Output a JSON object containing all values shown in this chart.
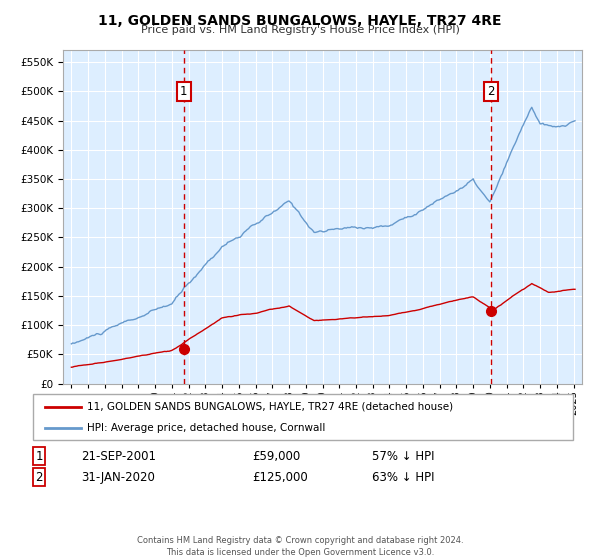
{
  "title": "11, GOLDEN SANDS BUNGALOWS, HAYLE, TR27 4RE",
  "subtitle": "Price paid vs. HM Land Registry's House Price Index (HPI)",
  "legend_line1": "11, GOLDEN SANDS BUNGALOWS, HAYLE, TR27 4RE (detached house)",
  "legend_line2": "HPI: Average price, detached house, Cornwall",
  "sale1_date": "21-SEP-2001",
  "sale1_price": "£59,000",
  "sale1_hpi": "57% ↓ HPI",
  "sale2_date": "31-JAN-2020",
  "sale2_price": "£125,000",
  "sale2_hpi": "63% ↓ HPI",
  "note": "Contains HM Land Registry data © Crown copyright and database right 2024.\nThis data is licensed under the Open Government Licence v3.0.",
  "red_color": "#cc0000",
  "blue_color": "#6699cc",
  "bg_color": "#ddeeff",
  "yticks": [
    0,
    50000,
    100000,
    150000,
    200000,
    250000,
    300000,
    350000,
    400000,
    450000,
    500000,
    550000
  ],
  "sale1_x": 2001.72,
  "sale1_y": 59000,
  "sale2_x": 2020.08,
  "sale2_y": 125000,
  "xmin": 1994.5,
  "xmax": 2025.5
}
